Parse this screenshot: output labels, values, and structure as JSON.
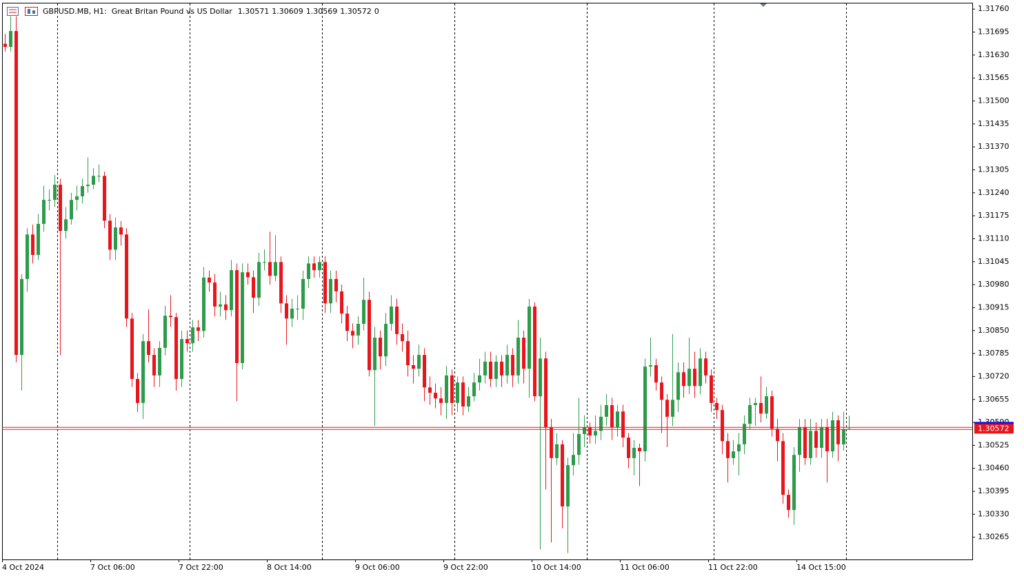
{
  "chart_data": {
    "type": "candlestick",
    "title": "GBPUSD.MB, H1:  Great Britan Pound vs US Dollar",
    "header_last": 0,
    "up_color": "#2e9b4b",
    "down_color": "#e8161c",
    "price_line_color": "#e8161c",
    "grid": false,
    "x_labels": [
      "4 Oct 2024",
      "7 Oct 06:00",
      "7 Oct 22:00",
      "8 Oct 14:00",
      "9 Oct 06:00",
      "9 Oct 22:00",
      "10 Oct 14:00",
      "11 Oct 06:00",
      "11 Oct 22:00",
      "14 Oct 15:00"
    ],
    "ylim": [
      1.30202,
      1.31778
    ],
    "yticks": [
      {
        "value": 1.3176,
        "label": "1.31760"
      },
      1.31695,
      {
        "value": 1.3163,
        "label": "1.31630"
      },
      1.31565,
      {
        "value": 1.315,
        "label": "1.31500"
      },
      1.31435,
      {
        "value": 1.3137,
        "label": "1.31370"
      },
      1.31305,
      {
        "value": 1.3124,
        "label": "1.31240"
      },
      1.31175,
      {
        "value": 1.3111,
        "label": "1.31110"
      },
      1.31045,
      {
        "value": 1.3098,
        "label": "1.30980"
      },
      1.30915,
      {
        "value": 1.3085,
        "label": "1.30850"
      },
      1.30785,
      {
        "value": 1.3072,
        "label": "1.30720"
      },
      1.30655,
      {
        "value": 1.3059,
        "label": "1.30590"
      },
      1.30525,
      {
        "value": 1.3046,
        "label": "1.30460"
      },
      1.30395,
      {
        "value": 1.3033,
        "label": "1.30330"
      },
      1.30265
    ],
    "open": [
      1.31662,
      1.31653,
      1.31698,
      1.30781,
      1.30996,
      1.31122,
      1.31064,
      1.31152,
      1.3122,
      1.3122,
      1.31263,
      1.31132,
      1.31165,
      1.3122,
      1.3123,
      1.31259,
      1.31263,
      1.31288,
      1.31288,
      1.31161,
      1.31079,
      1.31142,
      1.31122,
      1.30884,
      1.30713,
      1.30645,
      1.3082,
      1.30781,
      1.30723,
      1.30801,
      1.30892,
      1.30888,
      1.30713,
      1.30826,
      1.30814,
      1.30859,
      1.30849,
      1.31,
      1.30986,
      1.30918,
      1.30924,
      1.30908,
      1.31021,
      1.30758,
      1.31015,
      1.31001,
      1.30943,
      1.31044,
      1.31044,
      1.31005,
      1.31044,
      1.30927,
      1.30884,
      1.30912,
      1.30912,
      1.30996,
      1.3104,
      1.31021,
      1.31044,
      1.30927,
      1.30996,
      1.30961,
      1.30898,
      1.30849,
      1.30836,
      1.30869,
      1.30937,
      1.30738,
      1.3083,
      1.30777,
      1.30869,
      1.30918,
      1.3084,
      1.3082,
      1.30752,
      1.30742,
      1.30781,
      1.30689,
      1.30674,
      1.30658,
      1.30645,
      1.30723,
      1.30645,
      1.30703,
      1.30635,
      1.30664,
      1.30703,
      1.30723,
      1.30762,
      1.30713,
      1.30762,
      1.30723,
      1.30781,
      1.30723,
      1.3083,
      1.30742,
      1.30918,
      1.30664,
      1.30771,
      1.30576,
      1.30489,
      1.30528,
      1.30352,
      1.30469,
      1.30498,
      1.30557,
      1.30576,
      1.30553,
      1.30566,
      1.30606,
      1.30639,
      1.30576,
      1.30621,
      1.30547,
      1.30489,
      1.30518,
      1.30508,
      1.30748,
      1.30752,
      1.30703,
      1.30654,
      1.30606,
      1.30654,
      1.30732,
      1.30693,
      1.30742,
      1.30693,
      1.30771,
      1.30723,
      1.30645,
      1.30625,
      1.30537,
      1.30489,
      1.30508,
      1.30528,
      1.30586,
      1.30639,
      1.30645,
      1.30615,
      1.30664,
      1.30572,
      1.30537,
      1.30385,
      1.30342,
      1.30498,
      1.30576,
      1.30489,
      1.30566,
      1.30518,
      1.30576,
      1.30508,
      1.30596,
      1.30528,
      1.30571
    ],
    "high": [
      1.3169,
      1.3174,
      1.3174,
      1.3101,
      1.3114,
      1.3115,
      1.3118,
      1.3126,
      1.3125,
      1.3129,
      1.3128,
      1.312,
      1.3124,
      1.3126,
      1.3128,
      1.3134,
      1.3131,
      1.3132,
      1.313,
      1.3118,
      1.3117,
      1.3116,
      1.3114,
      1.309,
      1.3073,
      1.3084,
      1.3091,
      1.308,
      1.3082,
      1.3092,
      1.3095,
      1.309,
      1.3085,
      1.3085,
      1.3088,
      1.3088,
      1.3103,
      1.3102,
      1.3101,
      1.3096,
      1.3095,
      1.3105,
      1.3104,
      1.3104,
      1.3104,
      1.3102,
      1.3107,
      1.3108,
      1.3113,
      1.3112,
      1.3106,
      1.3095,
      1.3094,
      1.3095,
      1.3102,
      1.3106,
      1.3106,
      1.3106,
      1.3106,
      1.3102,
      1.3102,
      1.3098,
      1.3092,
      1.3087,
      1.3089,
      1.31,
      1.3096,
      1.3086,
      1.3085,
      1.309,
      1.3095,
      1.3094,
      1.3087,
      1.3085,
      1.3078,
      1.3081,
      1.308,
      1.3072,
      1.307,
      1.3069,
      1.3075,
      1.3074,
      1.3072,
      1.3072,
      1.3069,
      1.3073,
      1.3077,
      1.3079,
      1.3079,
      1.3078,
      1.3078,
      1.3081,
      1.308,
      1.3088,
      1.3085,
      1.3094,
      1.3093,
      1.3083,
      1.3079,
      1.306,
      1.3056,
      1.3054,
      1.3049,
      1.3056,
      1.3066,
      1.3061,
      1.3059,
      1.3061,
      1.3064,
      1.3067,
      1.3066,
      1.3064,
      1.3064,
      1.3056,
      1.3054,
      1.3053,
      1.3077,
      1.3083,
      1.3077,
      1.3072,
      1.3067,
      1.3084,
      1.3076,
      1.3076,
      1.3083,
      1.3079,
      1.308,
      1.3079,
      1.3074,
      1.3066,
      1.3064,
      1.3056,
      1.3054,
      1.3056,
      1.3061,
      1.3066,
      1.3066,
      1.3072,
      1.3069,
      1.3068,
      1.306,
      1.3056,
      1.304,
      1.3052,
      1.306,
      1.306,
      1.306,
      1.3059,
      1.306,
      1.306,
      1.3062,
      1.3061,
      1.3062,
      1.30609
    ],
    "low": [
      1.3164,
      1.3164,
      1.3076,
      1.3068,
      1.3096,
      1.3104,
      1.3105,
      1.3113,
      1.3119,
      1.312,
      1.3078,
      1.3111,
      1.3115,
      1.3119,
      1.3121,
      1.3124,
      1.3125,
      1.3127,
      1.3114,
      1.3105,
      1.3105,
      1.3109,
      1.3086,
      1.3069,
      1.3062,
      1.306,
      1.3076,
      1.3069,
      1.3069,
      1.3078,
      1.3086,
      1.3068,
      1.3069,
      1.3079,
      1.3079,
      1.3082,
      1.3083,
      1.3096,
      1.3089,
      1.3089,
      1.3088,
      1.3089,
      1.3065,
      1.3074,
      1.3098,
      1.309,
      1.3092,
      1.3102,
      1.3098,
      1.3099,
      1.309,
      1.3081,
      1.3086,
      1.3088,
      1.3088,
      1.3097,
      1.31,
      1.31,
      1.309,
      1.309,
      1.3093,
      1.3087,
      1.3082,
      1.308,
      1.3081,
      1.3085,
      1.3072,
      1.3058,
      1.3074,
      1.3075,
      1.3085,
      1.3081,
      1.3079,
      1.3072,
      1.307,
      1.3072,
      1.3065,
      1.3064,
      1.3063,
      1.3061,
      1.306,
      1.3061,
      1.3062,
      1.3061,
      1.3062,
      1.3065,
      1.3068,
      1.307,
      1.3069,
      1.3069,
      1.3069,
      1.307,
      1.3069,
      1.307,
      1.307,
      1.3066,
      1.3065,
      1.3023,
      1.304,
      1.3025,
      1.3047,
      1.3029,
      1.3022,
      1.3044,
      1.3047,
      1.3052,
      1.3053,
      1.3053,
      1.3054,
      1.3058,
      1.3054,
      1.3055,
      1.3052,
      1.3046,
      1.3044,
      1.3041,
      1.3048,
      1.3072,
      1.3068,
      1.3056,
      1.3052,
      1.3058,
      1.3062,
      1.3066,
      1.3067,
      1.3066,
      1.3067,
      1.307,
      1.3062,
      1.306,
      1.305,
      1.3042,
      1.3047,
      1.3044,
      1.305,
      1.3057,
      1.3058,
      1.3059,
      1.306,
      1.3055,
      1.3048,
      1.3036,
      1.3032,
      1.303,
      1.3045,
      1.3047,
      1.3047,
      1.3049,
      1.3049,
      1.3042,
      1.3049,
      1.3048,
      1.3051,
      1.30569
    ],
    "close": [
      1.31653,
      1.31698,
      1.30781,
      1.30996,
      1.31122,
      1.31064,
      1.31152,
      1.3122,
      1.3122,
      1.31263,
      1.31132,
      1.31165,
      1.3122,
      1.3123,
      1.31259,
      1.31263,
      1.31288,
      1.31288,
      1.31161,
      1.31079,
      1.31142,
      1.31122,
      1.30884,
      1.30713,
      1.30645,
      1.3082,
      1.30781,
      1.30723,
      1.30801,
      1.30892,
      1.30888,
      1.30713,
      1.30826,
      1.30814,
      1.30859,
      1.30849,
      1.31,
      1.30986,
      1.30918,
      1.30924,
      1.30908,
      1.31021,
      1.30758,
      1.31015,
      1.31001,
      1.30943,
      1.31044,
      1.31044,
      1.31005,
      1.31044,
      1.30927,
      1.30884,
      1.30912,
      1.30912,
      1.30996,
      1.3104,
      1.31021,
      1.31044,
      1.30927,
      1.30996,
      1.30961,
      1.30898,
      1.30849,
      1.30836,
      1.30869,
      1.30937,
      1.30738,
      1.3083,
      1.30777,
      1.30869,
      1.30918,
      1.3084,
      1.3082,
      1.30752,
      1.30742,
      1.30781,
      1.30689,
      1.30674,
      1.30658,
      1.30645,
      1.30723,
      1.30645,
      1.30703,
      1.30635,
      1.30664,
      1.30703,
      1.30723,
      1.30762,
      1.30713,
      1.30762,
      1.30723,
      1.30781,
      1.30723,
      1.3083,
      1.30742,
      1.30918,
      1.30664,
      1.30771,
      1.30576,
      1.30489,
      1.30528,
      1.30352,
      1.30469,
      1.30498,
      1.30557,
      1.30576,
      1.30553,
      1.30566,
      1.30606,
      1.30639,
      1.30576,
      1.30621,
      1.30547,
      1.30489,
      1.30518,
      1.30508,
      1.30748,
      1.30752,
      1.30703,
      1.30654,
      1.30606,
      1.30654,
      1.30732,
      1.30693,
      1.30742,
      1.30693,
      1.30771,
      1.30723,
      1.30645,
      1.30625,
      1.30537,
      1.30489,
      1.30508,
      1.30528,
      1.30586,
      1.30639,
      1.30645,
      1.30615,
      1.30664,
      1.30572,
      1.30537,
      1.30385,
      1.30342,
      1.30498,
      1.30576,
      1.30489,
      1.30566,
      1.30518,
      1.30576,
      1.30508,
      1.30596,
      1.30528,
      1.30571,
      1.30572
    ]
  }
}
